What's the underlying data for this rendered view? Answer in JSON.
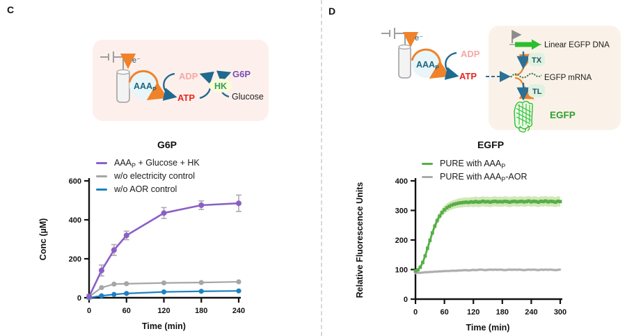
{
  "panel_c": {
    "label": "C",
    "diagram": {
      "electron_label": "e⁻",
      "enzyme_pre": "AAA",
      "enzyme_sub": "P",
      "adp": "ADP",
      "atp": "ATP",
      "g6p": "G6P",
      "hk": "HK",
      "glucose": "Glucose"
    },
    "chart": {
      "legend": [
        {
          "pre": "AAA",
          "sub": "P",
          "post": " + Glucose + HK"
        },
        {
          "pre": "",
          "sub": "",
          "post": "w/o electricity control"
        },
        {
          "pre": "",
          "sub": "",
          "post": "w/o AOR control"
        }
      ]
    }
  },
  "panel_d": {
    "label": "D",
    "diagram": {
      "electron_label": "e⁻",
      "enzyme_pre": "AAA",
      "enzyme_sub": "P",
      "adp": "ADP",
      "atp": "ATP",
      "dna_label": "Linear EGFP DNA",
      "tx": "TX",
      "mrna_label": "EGFP mRNA",
      "tl": "TL",
      "egfp": "EGFP"
    },
    "chart": {
      "legend": [
        {
          "pre": "PURE with AAA",
          "sub": "P",
          "post": ""
        },
        {
          "pre": "PURE with AAA",
          "sub": "P",
          "post": "-AOR"
        }
      ]
    }
  },
  "colors": {
    "orange": "#F0822A",
    "cycle_arrow_teal": "#20698F",
    "enzyme_text_teal": "#17677F",
    "adp_pink": "#F5A8A4",
    "atp_red": "#E8251F",
    "g6p_purple": "#7A4FB5",
    "hk_green": "#2FA05C",
    "egfp_green": "#2DA02D",
    "panel_c_box_bg": "#FDF0EC",
    "panel_d_box_bg": "#FAF2E8",
    "purple_series": "#8B5FC6",
    "gray_series": "#A6A6A6",
    "blue_series": "#1E80C2",
    "green_series": "#56AE48",
    "green_band": "#C9E3A9"
  },
  "chart_data": [
    {
      "type": "line",
      "title": "G6P",
      "xlabel": "Time (min)",
      "ylabel": "Conc (µM)",
      "xlim": [
        0,
        240
      ],
      "ylim": [
        0,
        600
      ],
      "xticks": [
        0,
        60,
        120,
        180,
        240
      ],
      "yticks": [
        0,
        200,
        400,
        600
      ],
      "grid": false,
      "legend_position": "top-left-inside",
      "series": [
        {
          "name": "AAA_P + Glucose + HK",
          "color": "#8B5FC6",
          "err_color": "#ACACAC",
          "marker": "circle",
          "msize": 4,
          "lw": 2.6,
          "x": [
            0,
            20,
            40,
            60,
            120,
            180,
            240
          ],
          "y": [
            5,
            140,
            245,
            320,
            435,
            475,
            485
          ],
          "err": [
            12,
            28,
            28,
            22,
            28,
            22,
            42
          ]
        },
        {
          "name": "w/o electricity control",
          "color": "#A6A6A6",
          "marker": "circle",
          "msize": 3.6,
          "lw": 2.2,
          "x": [
            0,
            20,
            40,
            60,
            120,
            180,
            240
          ],
          "y": [
            5,
            52,
            70,
            72,
            76,
            78,
            82
          ]
        },
        {
          "name": "w/o AOR control",
          "color": "#1E80C2",
          "marker": "circle",
          "msize": 3.6,
          "lw": 2.2,
          "x": [
            0,
            20,
            40,
            60,
            120,
            180,
            240
          ],
          "y": [
            0,
            10,
            17,
            22,
            30,
            33,
            35
          ]
        }
      ]
    },
    {
      "type": "line",
      "title": "EGFP",
      "xlabel": "Time (min)",
      "ylabel": "Relative Fluorescence Units",
      "xlim": [
        0,
        300
      ],
      "ylim": [
        0,
        400
      ],
      "xticks": [
        0,
        60,
        120,
        180,
        240,
        300
      ],
      "yticks": [
        0,
        100,
        200,
        300,
        400
      ],
      "grid": false,
      "legend_position": "top-left-inside",
      "series": [
        {
          "name": "PURE with AAA_P",
          "color": "#56AE48",
          "band_color": "#C9E3A9",
          "marker": "square",
          "msize": 2.4,
          "lw": 2.8,
          "x": [
            0,
            5,
            10,
            15,
            20,
            25,
            30,
            35,
            40,
            45,
            50,
            55,
            60,
            65,
            70,
            75,
            80,
            85,
            90,
            95,
            100,
            105,
            110,
            115,
            120,
            125,
            130,
            135,
            140,
            145,
            150,
            155,
            160,
            165,
            170,
            175,
            180,
            185,
            190,
            195,
            200,
            205,
            210,
            215,
            220,
            225,
            230,
            235,
            240,
            245,
            250,
            255,
            260,
            265,
            270,
            275,
            280,
            285,
            290,
            295,
            300
          ],
          "y": [
            95,
            99,
            108,
            124,
            146,
            172,
            199,
            224,
            247,
            266,
            281,
            293,
            302,
            309,
            314,
            318,
            321,
            323,
            325,
            326,
            327,
            328,
            327,
            329,
            328,
            330,
            328,
            329,
            331,
            329,
            330,
            328,
            330,
            331,
            329,
            330,
            329,
            331,
            330,
            328,
            330,
            331,
            329,
            330,
            331,
            329,
            330,
            332,
            329,
            331,
            330,
            328,
            331,
            330,
            332,
            329,
            331,
            330,
            328,
            331,
            330
          ],
          "band": [
            6,
            6,
            7,
            8,
            9,
            10,
            11,
            12,
            12,
            13,
            13,
            14,
            14,
            14,
            15,
            15,
            15,
            15,
            16,
            16,
            16,
            16,
            16,
            16,
            17,
            17,
            17,
            17,
            17,
            17,
            17,
            17,
            17,
            17,
            17,
            17,
            17,
            17,
            17,
            17,
            17,
            17,
            17,
            17,
            17,
            17,
            17,
            17,
            17,
            17,
            17,
            17,
            17,
            17,
            17,
            17,
            17,
            17,
            17,
            17,
            17
          ]
        },
        {
          "name": "PURE with AAA_P-AOR",
          "color": "#ABABAB",
          "band_color": "#DCDCDC",
          "marker": "none",
          "lw": 2.6,
          "x": [
            0,
            5,
            10,
            15,
            20,
            25,
            30,
            35,
            40,
            45,
            50,
            55,
            60,
            65,
            70,
            75,
            80,
            85,
            90,
            95,
            100,
            105,
            110,
            115,
            120,
            125,
            130,
            135,
            140,
            145,
            150,
            155,
            160,
            165,
            170,
            175,
            180,
            185,
            190,
            195,
            200,
            205,
            210,
            215,
            220,
            225,
            230,
            235,
            240,
            245,
            250,
            255,
            260,
            265,
            270,
            275,
            280,
            285,
            290,
            295,
            300
          ],
          "y": [
            88,
            89,
            89,
            90,
            91,
            91,
            92,
            92,
            93,
            93,
            94,
            94,
            95,
            95,
            95,
            96,
            96,
            96,
            97,
            97,
            98,
            98,
            97,
            98,
            99,
            98,
            99,
            100,
            99,
            98,
            99,
            100,
            99,
            100,
            99,
            100,
            99,
            98,
            99,
            100,
            99,
            100,
            99,
            100,
            99,
            98,
            99,
            100,
            99,
            100,
            99,
            98,
            100,
            99,
            100,
            99,
            100,
            99,
            98,
            99,
            100
          ],
          "band": 5
        }
      ]
    }
  ]
}
